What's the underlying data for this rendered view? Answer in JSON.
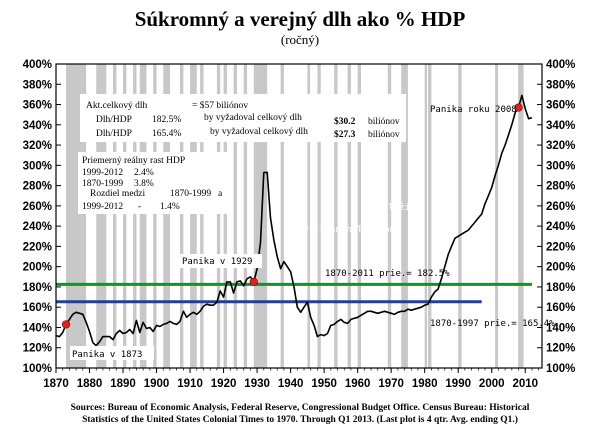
{
  "chart_data": {
    "type": "line",
    "title": "Súkromný a verejný dlh ako % HDP",
    "subtitle": "(ročný)",
    "xlim": [
      1870,
      2015
    ],
    "ylim": [
      100,
      400
    ],
    "x_ticks": [
      "1870",
      "1880",
      "1890",
      "1900",
      "1910",
      "1920",
      "1930",
      "1940",
      "1950",
      "1960",
      "1970",
      "1980",
      "1990",
      "2000",
      "2010"
    ],
    "y_ticks": [
      "100%",
      "120%",
      "140%",
      "160%",
      "180%",
      "200%",
      "220%",
      "240%",
      "260%",
      "280%",
      "300%",
      "320%",
      "340%",
      "360%",
      "380%",
      "400%"
    ],
    "recession_bars": [
      [
        1873,
        1879
      ],
      [
        1882,
        1885
      ],
      [
        1887,
        1888
      ],
      [
        1890,
        1891
      ],
      [
        1893,
        1894
      ],
      [
        1895,
        1897
      ],
      [
        1899,
        1900
      ],
      [
        1902,
        1904
      ],
      [
        1907,
        1908
      ],
      [
        1910,
        1912
      ],
      [
        1913,
        1914
      ],
      [
        1918,
        1919
      ],
      [
        1920,
        1921
      ],
      [
        1923,
        1924
      ],
      [
        1926,
        1927
      ],
      [
        1929,
        1933
      ],
      [
        1937,
        1938
      ],
      [
        1945,
        1945.8
      ],
      [
        1948,
        1949
      ],
      [
        1953,
        1954
      ],
      [
        1957,
        1958
      ],
      [
        1960,
        1961
      ],
      [
        1969,
        1970
      ],
      [
        1973,
        1975
      ],
      [
        1980,
        1980.7
      ],
      [
        1981,
        1982
      ],
      [
        1990,
        1991
      ],
      [
        2001,
        2001.9
      ],
      [
        2007.9,
        2009.5
      ]
    ],
    "series": [
      {
        "points": [
          [
            1870,
            132
          ],
          [
            1871,
            131
          ],
          [
            1872,
            135
          ],
          [
            1873,
            143
          ],
          [
            1874,
            148
          ],
          [
            1875,
            153
          ],
          [
            1876,
            155
          ],
          [
            1877,
            154
          ],
          [
            1878,
            153
          ],
          [
            1879,
            145
          ],
          [
            1880,
            136
          ],
          [
            1881,
            125
          ],
          [
            1882,
            122
          ],
          [
            1883,
            126
          ],
          [
            1884,
            131
          ],
          [
            1885,
            131
          ],
          [
            1886,
            131
          ],
          [
            1887,
            128
          ],
          [
            1888,
            134
          ],
          [
            1889,
            137
          ],
          [
            1890,
            134
          ],
          [
            1891,
            135
          ],
          [
            1892,
            138
          ],
          [
            1893,
            134
          ],
          [
            1894,
            147
          ],
          [
            1895,
            135
          ],
          [
            1896,
            145
          ],
          [
            1897,
            139
          ],
          [
            1898,
            140
          ],
          [
            1899,
            136
          ],
          [
            1900,
            142
          ],
          [
            1901,
            141
          ],
          [
            1902,
            143
          ],
          [
            1903,
            144
          ],
          [
            1904,
            146
          ],
          [
            1905,
            144
          ],
          [
            1906,
            143
          ],
          [
            1907,
            146
          ],
          [
            1908,
            156
          ],
          [
            1909,
            150
          ],
          [
            1910,
            153
          ],
          [
            1911,
            155
          ],
          [
            1912,
            153
          ],
          [
            1913,
            156
          ],
          [
            1914,
            161
          ],
          [
            1915,
            163
          ],
          [
            1916,
            162
          ],
          [
            1917,
            162
          ],
          [
            1918,
            165
          ],
          [
            1919,
            176
          ],
          [
            1920,
            170
          ],
          [
            1921,
            185
          ],
          [
            1922,
            185
          ],
          [
            1923,
            174
          ],
          [
            1924,
            185
          ],
          [
            1925,
            186
          ],
          [
            1926,
            181
          ],
          [
            1927,
            188
          ],
          [
            1928,
            190
          ],
          [
            1929,
            185
          ],
          [
            1930,
            198
          ],
          [
            1931,
            224
          ],
          [
            1932,
            293
          ],
          [
            1933,
            293
          ],
          [
            1934,
            248
          ],
          [
            1935,
            226
          ],
          [
            1936,
            210
          ],
          [
            1937,
            198
          ],
          [
            1938,
            205
          ],
          [
            1939,
            200
          ],
          [
            1940,
            195
          ],
          [
            1941,
            180
          ],
          [
            1942,
            160
          ],
          [
            1943,
            155
          ],
          [
            1944,
            160
          ],
          [
            1945,
            165
          ],
          [
            1946,
            150
          ],
          [
            1947,
            142
          ],
          [
            1948,
            131
          ],
          [
            1949,
            133
          ],
          [
            1950,
            132
          ],
          [
            1951,
            134
          ],
          [
            1952,
            142
          ],
          [
            1953,
            143
          ],
          [
            1954,
            146
          ],
          [
            1955,
            148
          ],
          [
            1956,
            145
          ],
          [
            1957,
            144
          ],
          [
            1958,
            148
          ],
          [
            1959,
            149
          ],
          [
            1960,
            150
          ],
          [
            1961,
            152
          ],
          [
            1962,
            154
          ],
          [
            1963,
            156
          ],
          [
            1964,
            156
          ],
          [
            1965,
            155
          ],
          [
            1966,
            154
          ],
          [
            1967,
            155
          ],
          [
            1968,
            156
          ],
          [
            1969,
            155
          ],
          [
            1970,
            154
          ],
          [
            1971,
            153
          ],
          [
            1972,
            155
          ],
          [
            1973,
            156
          ],
          [
            1974,
            156
          ],
          [
            1975,
            158
          ],
          [
            1976,
            157
          ],
          [
            1977,
            158
          ],
          [
            1978,
            159
          ],
          [
            1979,
            160
          ],
          [
            1980,
            162
          ],
          [
            1981,
            163
          ],
          [
            1982,
            170
          ],
          [
            1983,
            175
          ],
          [
            1984,
            178
          ],
          [
            1985,
            188
          ],
          [
            1986,
            200
          ],
          [
            1987,
            212
          ],
          [
            1988,
            220
          ],
          [
            1989,
            228
          ],
          [
            1990,
            230
          ],
          [
            1991,
            232
          ],
          [
            1992,
            234
          ],
          [
            1993,
            236
          ],
          [
            1994,
            240
          ],
          [
            1995,
            244
          ],
          [
            1996,
            248
          ],
          [
            1997,
            252
          ],
          [
            1998,
            262
          ],
          [
            1999,
            270
          ],
          [
            2000,
            278
          ],
          [
            2001,
            290
          ],
          [
            2002,
            300
          ],
          [
            2003,
            312
          ],
          [
            2004,
            320
          ],
          [
            2005,
            330
          ],
          [
            2006,
            340
          ],
          [
            2007,
            352
          ],
          [
            2008,
            357
          ],
          [
            2009,
            369
          ],
          [
            2010,
            356
          ],
          [
            2011,
            346
          ],
          [
            2012,
            347
          ]
        ]
      }
    ],
    "reference_lines": [
      {
        "label": "1870-2011 prie.= 182.5%",
        "value": 182.5,
        "x_from": 1870,
        "x_to": 2012,
        "color": "#1f8a2e"
      },
      {
        "label": "1870-1997 prie.= 165.4%",
        "value": 165.4,
        "x_from": 1870,
        "x_to": 1997,
        "color": "#1c3fa3"
      }
    ],
    "markers": [
      {
        "label": "Panika v 1873",
        "x": 1873,
        "y": 143
      },
      {
        "label": "Panika v 1929",
        "x": 1929,
        "y": 185
      },
      {
        "label": "Panika roku 2008",
        "x": 2008,
        "y": 357
      }
    ],
    "annotations": {
      "box1_row1_a": "Akt.celkový dlh",
      "box1_row1_b": "= $57 biliónov",
      "box1_row2_a": "Dlh/HDP",
      "box1_row2_b": "182.5%",
      "box1_row2_c": "by vyžadoval celkový dlh",
      "box1_row2_d": "$30.2",
      "box1_row2_e": "biliónov",
      "box1_row3_a": "Dlh/HDP",
      "box1_row3_b": "165.4%",
      "box1_row3_c": "by vyžadoval celkový dlh",
      "box1_row3_d": "$27.3",
      "box1_row3_e": "biliónov",
      "box2_row1": "Priemerný reálny rast HDP",
      "box2_row2_a": "1999-2012",
      "box2_row2_b": "2.4%",
      "box2_row3_a": "1870-1999",
      "box2_row3_b": "3.8%",
      "box2_row4_a": "Rozdiel medzi",
      "box2_row4_b": "1870-1999",
      "box2_row4_c": "a",
      "box2_row5_a": "1999-2012",
      "box2_row5_b": "-",
      "box2_row5_c": "1.4%",
      "watermark_line1": "Preložil:",
      "watermark_line2": "www.FinancnyTrh.com"
    },
    "source": [
      "Sources: Bureau of Economic Analysis, Federal Reserve, Congressional Budget Office. Census Bureau: Historical",
      "Statistics of the United States Colonial Times to 1970.   Through Q1 2013.  (Last plot is 4 qtr. Avg. ending Q1.)"
    ],
    "colors": {
      "line": "#000000",
      "recession": "#c8c8c8",
      "marker": "#e02020",
      "green_line": "#1f8a2e",
      "blue_line": "#1c3fa3"
    }
  }
}
